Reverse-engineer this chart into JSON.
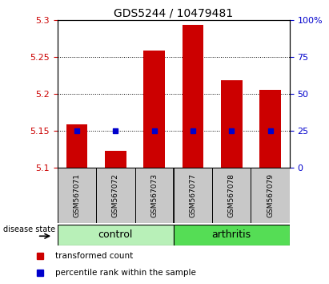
{
  "title": "GDS5244 / 10479481",
  "samples": [
    "GSM567071",
    "GSM567072",
    "GSM567073",
    "GSM567077",
    "GSM567078",
    "GSM567079"
  ],
  "red_bar_tops": [
    5.158,
    5.123,
    5.258,
    5.293,
    5.218,
    5.205
  ],
  "blue_dot_values": [
    5.15,
    5.15,
    5.15,
    5.15,
    5.15,
    5.15
  ],
  "bar_bottom": 5.1,
  "ylim_left": [
    5.1,
    5.3
  ],
  "ylim_right": [
    0,
    100
  ],
  "yticks_left": [
    5.1,
    5.15,
    5.2,
    5.25,
    5.3
  ],
  "yticks_right": [
    0,
    25,
    50,
    75,
    100
  ],
  "ytick_labels_left": [
    "5.1",
    "5.15",
    "5.2",
    "5.25",
    "5.3"
  ],
  "ytick_labels_right": [
    "0",
    "25",
    "50",
    "75",
    "100%"
  ],
  "group_control_color": "#b8f0b8",
  "group_arthritis_color": "#55dd55",
  "bar_color": "#cc0000",
  "dot_color": "#0000cc",
  "sample_box_color": "#c8c8c8",
  "plot_bg": "#ffffff",
  "label_color_left": "#cc0000",
  "label_color_right": "#0000cc",
  "disease_state_label": "disease state",
  "legend_red": "transformed count",
  "legend_blue": "percentile rank within the sample"
}
